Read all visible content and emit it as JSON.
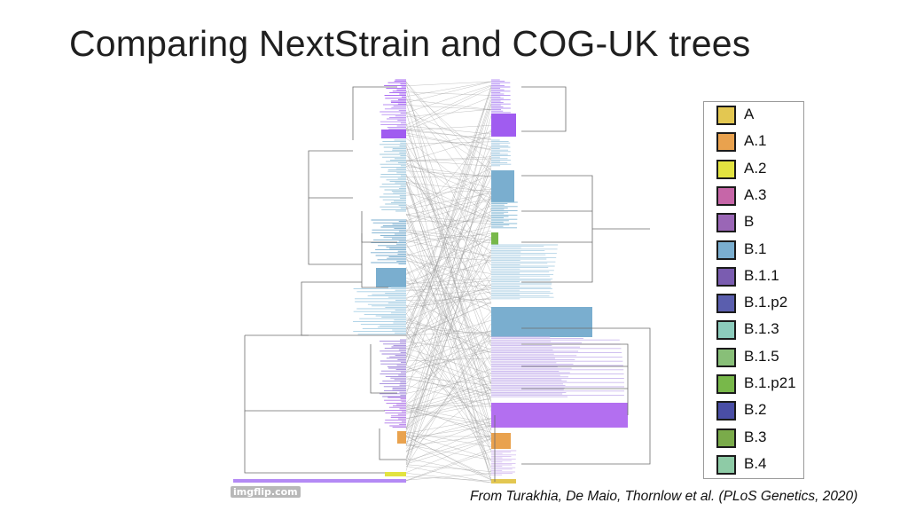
{
  "slide": {
    "title": "Comparing NextStrain and COG-UK trees",
    "citation": "From Turakhia, De Maio, Thornlow et al. (PLoS Genetics, 2020)",
    "watermark": "imgflip.com"
  },
  "legend": [
    {
      "label": "A",
      "color": "#e3c751"
    },
    {
      "label": "A.1",
      "color": "#e9a24e"
    },
    {
      "label": "A.2",
      "color": "#e2e340"
    },
    {
      "label": "A.3",
      "color": "#c666a8"
    },
    {
      "label": "B",
      "color": "#9a66b6"
    },
    {
      "label": "B.1",
      "color": "#7aaecf"
    },
    {
      "label": "B.1.1",
      "color": "#7a5cb0"
    },
    {
      "label": "B.1.p2",
      "color": "#5a5eae"
    },
    {
      "label": "B.1.3",
      "color": "#8cccbc"
    },
    {
      "label": "B.1.5",
      "color": "#88bf78"
    },
    {
      "label": "B.1.p21",
      "color": "#78b84a"
    },
    {
      "label": "B.2",
      "color": "#4a4ea6"
    },
    {
      "label": "B.3",
      "color": "#7aab4a"
    },
    {
      "label": "B.4",
      "color": "#8ecba6"
    }
  ]
}
